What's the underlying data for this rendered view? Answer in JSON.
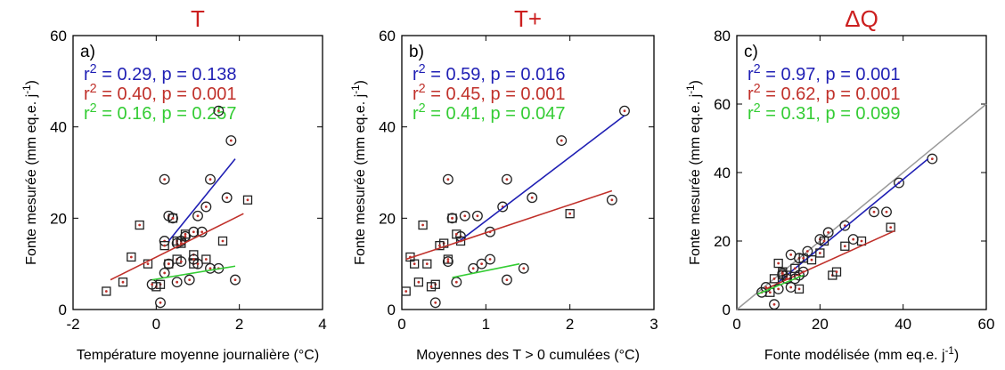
{
  "chart_data": [
    {
      "type": "scatter",
      "panel_label": "a)",
      "title": "T",
      "xlabel": "Température moyenne journalière (°C)",
      "ylabel": "Fonte mesurée (mm eq.e. j⁻¹)",
      "xlim": [
        -2,
        4
      ],
      "ylim": [
        0,
        60
      ],
      "xticks": [
        -2,
        0,
        2,
        4
      ],
      "yticks": [
        0,
        20,
        40,
        60
      ],
      "grid": false,
      "stats": [
        {
          "label": "r² = 0.29, p = 0.138",
          "color": "#1f1fb4"
        },
        {
          "label": "r² = 0.40, p = 0.001",
          "color": "#c0302a"
        },
        {
          "label": "r² = 0.16, p = 0.257",
          "color": "#33cc33"
        }
      ],
      "series": [
        {
          "marker": "circle",
          "fit_color": "#1f1fb4",
          "fit": [
            [
              0.3,
              15
            ],
            [
              1.9,
              33
            ]
          ],
          "x": [
            0.2,
            1.5,
            1.8,
            1.3,
            0.3,
            0.4,
            0.6,
            1.1,
            1.7,
            0.9,
            0.5,
            1.0,
            0.2,
            0.7,
            1.2
          ],
          "y": [
            28.5,
            43.5,
            37,
            28.5,
            20.5,
            20,
            15,
            17,
            24.5,
            17,
            14.5,
            20.5,
            15,
            16,
            22.5
          ]
        },
        {
          "marker": "square",
          "fit_color": "#c0302a",
          "fit": [
            [
              -1.1,
              6.5
            ],
            [
              2.1,
              21
            ]
          ],
          "x": [
            -1.2,
            -0.6,
            -0.2,
            0.1,
            0.3,
            0.5,
            0.9,
            1.2,
            1.6,
            -0.8,
            0.4,
            0.7,
            2.2,
            0.0,
            0.6,
            0.9,
            -0.4,
            0.2,
            0.5
          ],
          "y": [
            4,
            11.5,
            10,
            5.5,
            10,
            15,
            12,
            11,
            15,
            6,
            20,
            16.5,
            24,
            5,
            14.5,
            10,
            18.5,
            14,
            11
          ]
        },
        {
          "marker": "circle",
          "fit_color": "#33cc33",
          "fit": [
            [
              -0.1,
              6.5
            ],
            [
              1.9,
              9.5
            ]
          ],
          "x": [
            -0.1,
            0.1,
            0.5,
            1.3,
            1.9,
            0.2,
            0.8,
            0.3,
            1.0,
            1.5,
            0.6,
            0.9
          ],
          "y": [
            5.5,
            1.5,
            6,
            9,
            6.5,
            8,
            6.5,
            10,
            10,
            9,
            10.5,
            11
          ]
        }
      ]
    },
    {
      "type": "scatter",
      "panel_label": "b)",
      "title": "T+",
      "xlabel": "Moyennes des T > 0 cumulées (°C)",
      "ylabel": "Fonte mesurée (mm eq.e. j⁻¹)",
      "xlim": [
        0,
        3
      ],
      "ylim": [
        0,
        60
      ],
      "xticks": [
        0,
        1,
        2,
        3
      ],
      "yticks": [
        0,
        20,
        40,
        60
      ],
      "grid": false,
      "stats": [
        {
          "label": "r² = 0.59, p = 0.016",
          "color": "#1f1fb4"
        },
        {
          "label": "r² = 0.45, p = 0.001",
          "color": "#c0302a"
        },
        {
          "label": "r² = 0.41, p = 0.047",
          "color": "#33cc33"
        }
      ],
      "series": [
        {
          "marker": "circle",
          "fit_color": "#1f1fb4",
          "fit": [
            [
              0.65,
              14.5
            ],
            [
              2.65,
              42.5
            ]
          ],
          "x": [
            0.55,
            2.65,
            1.9,
            1.25,
            0.6,
            0.75,
            1.05,
            1.55,
            0.9,
            1.2,
            0.7,
            2.5
          ],
          "y": [
            28.5,
            43.5,
            37,
            28.5,
            20,
            20.5,
            17,
            24.5,
            20.5,
            22.5,
            16,
            24
          ]
        },
        {
          "marker": "square",
          "fit_color": "#c0302a",
          "fit": [
            [
              0.05,
              11
            ],
            [
              2.5,
              26
            ]
          ],
          "x": [
            0.05,
            0.1,
            0.2,
            0.3,
            0.4,
            0.5,
            0.65,
            0.7,
            0.35,
            0.15,
            0.25,
            0.55,
            0.45,
            0.6,
            2.0
          ],
          "y": [
            4,
            11.5,
            6,
            10,
            5.5,
            14.5,
            16.5,
            15,
            5,
            10,
            18.5,
            11,
            14,
            20,
            21
          ]
        },
        {
          "marker": "circle",
          "fit_color": "#33cc33",
          "fit": [
            [
              0.6,
              7
            ],
            [
              1.4,
              10
            ]
          ],
          "x": [
            0.4,
            0.65,
            0.85,
            1.05,
            1.25,
            1.45,
            0.55,
            0.95
          ],
          "y": [
            1.5,
            6,
            9,
            11,
            6.5,
            9,
            10.5,
            10
          ]
        }
      ]
    },
    {
      "type": "scatter",
      "panel_label": "c)",
      "title": "ΔQ",
      "xlabel": "Fonte modélisée (mm eq.e. j⁻¹)",
      "ylabel": "Fonte mesurée (mm eq.e. j⁻¹)",
      "xlim": [
        0,
        60
      ],
      "ylim": [
        0,
        80
      ],
      "xticks": [
        0,
        20,
        40,
        60
      ],
      "yticks": [
        0,
        20,
        40,
        60,
        80
      ],
      "grid": false,
      "stats": [
        {
          "label": "r² = 0.97, p = 0.001",
          "color": "#1f1fb4"
        },
        {
          "label": "r² = 0.62, p = 0.001",
          "color": "#c0302a"
        },
        {
          "label": "r² = 0.31, p = 0.099",
          "color": "#33cc33"
        }
      ],
      "one_to_one": [
        [
          0,
          0
        ],
        [
          60,
          60
        ]
      ],
      "series": [
        {
          "marker": "circle",
          "fit_color": "#1f1fb4",
          "fit": [
            [
              10,
              8
            ],
            [
              46,
              44
            ]
          ],
          "x": [
            47,
            39,
            36,
            33,
            26,
            20,
            17,
            15,
            11,
            28,
            22,
            13
          ],
          "y": [
            44,
            37,
            28.5,
            28.5,
            24.5,
            20.5,
            17,
            15,
            10,
            20.5,
            22.5,
            16
          ]
        },
        {
          "marker": "square",
          "fit_color": "#c0302a",
          "fit": [
            [
              7,
              6
            ],
            [
              38,
              23
            ]
          ],
          "x": [
            8,
            11,
            14,
            18,
            23,
            24,
            30,
            37,
            9,
            12,
            16,
            20,
            26,
            21,
            10,
            15
          ],
          "y": [
            5,
            11,
            12,
            14.5,
            10,
            11,
            20,
            24,
            9,
            10,
            15,
            16.5,
            18.5,
            20,
            13.5,
            6
          ]
        },
        {
          "marker": "circle",
          "fit_color": "#33cc33",
          "fit": [
            [
              5,
              4.5
            ],
            [
              16,
              10
            ]
          ],
          "x": [
            6,
            9,
            10,
            12,
            13,
            14,
            15,
            7,
            11,
            16
          ],
          "y": [
            5,
            1.5,
            6,
            9,
            6.5,
            9,
            10,
            6.5,
            10.5,
            11
          ]
        }
      ]
    }
  ]
}
